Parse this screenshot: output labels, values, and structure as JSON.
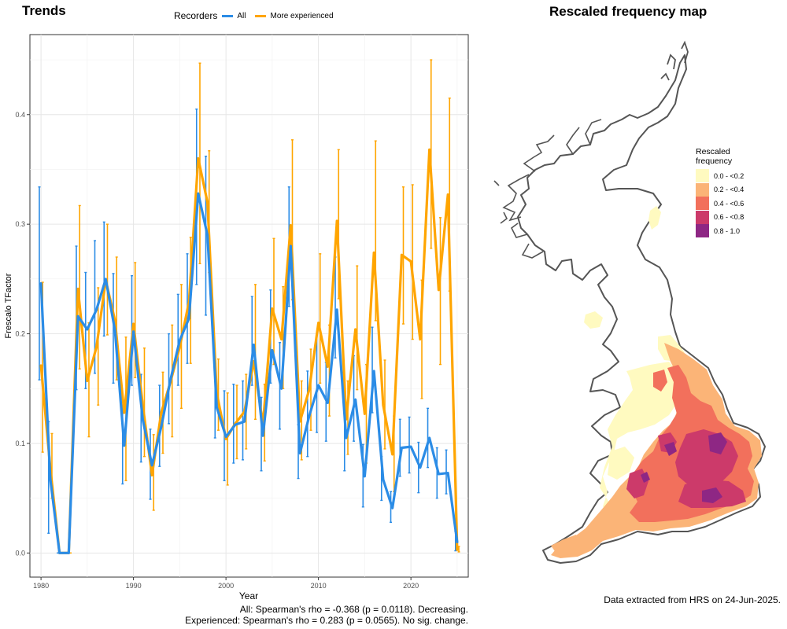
{
  "left_panel": {
    "title": "Trends",
    "legend": {
      "title": "Recorders",
      "items": [
        {
          "label": "All",
          "color": "#2B8CE6"
        },
        {
          "label": "More experienced",
          "color": "#FFA500"
        }
      ]
    },
    "stats": {
      "all": "All: Spearman's rho = -0.368 (p = 0.0118). Decreasing.",
      "experienced": "Experienced: Spearman's rho = 0.283 (p = 0.0565). No sig. change."
    }
  },
  "right_panel": {
    "title": "Rescaled frequency map",
    "legend_title_line1": "Rescaled",
    "legend_title_line2": "frequency",
    "legend_items": [
      {
        "label": "0.0 - <0.2",
        "color": "#FFFAC0"
      },
      {
        "label": "0.2 - <0.4",
        "color": "#FBB477"
      },
      {
        "label": "0.4 - <0.6",
        "color": "#F2705C"
      },
      {
        "label": "0.6 - <0.8",
        "color": "#CC3A6A"
      },
      {
        "label": "0.8 - 1.0",
        "color": "#8E2784"
      }
    ],
    "footnote": "Data extracted from HRS on 24-Jun-2025."
  },
  "chart_data": {
    "type": "line",
    "title": "Trends",
    "xlabel": "Year",
    "ylabel": "Frescalo TFactor",
    "xlim": [
      1978.8,
      2026.2
    ],
    "ylim": [
      -0.022,
      0.473
    ],
    "x_ticks": [
      1980,
      1990,
      2000,
      2010,
      2020
    ],
    "y_ticks": [
      0.0,
      0.1,
      0.2,
      0.3,
      0.4
    ],
    "y_tick_labels": [
      "0.0",
      "0.1",
      "0.2",
      "0.3",
      "0.4"
    ],
    "legend_position": "top",
    "grid": true,
    "series": [
      {
        "name": "All",
        "color": "#2B8CE6",
        "x": [
          1980,
          1981,
          1982,
          1983,
          1984,
          1985,
          1986,
          1987,
          1988,
          1989,
          1990,
          1991,
          1992,
          1993,
          1994,
          1995,
          1996,
          1997,
          1998,
          1999,
          2000,
          2001,
          2002,
          2003,
          2004,
          2005,
          2006,
          2007,
          2008,
          2009,
          2010,
          2011,
          2012,
          2013,
          2014,
          2015,
          2016,
          2017,
          2018,
          2019,
          2020,
          2021,
          2022,
          2023,
          2024,
          2025
        ],
        "y": [
          0.246,
          0.068,
          0.0,
          0.0,
          0.216,
          0.204,
          0.222,
          0.25,
          0.203,
          0.098,
          0.202,
          0.122,
          0.08,
          0.115,
          0.158,
          0.194,
          0.214,
          0.328,
          0.29,
          0.133,
          0.106,
          0.117,
          0.12,
          0.19,
          0.107,
          0.185,
          0.15,
          0.28,
          0.091,
          0.125,
          0.153,
          0.137,
          0.222,
          0.105,
          0.14,
          0.07,
          0.166,
          0.067,
          0.041,
          0.096,
          0.097,
          0.078,
          0.105,
          0.072,
          0.073,
          0.01
        ],
        "lower": [
          0.158,
          0.018,
          0.0,
          0.0,
          0.149,
          0.15,
          0.164,
          0.198,
          0.155,
          0.063,
          0.153,
          0.083,
          0.049,
          0.079,
          0.118,
          0.153,
          0.173,
          0.245,
          0.217,
          0.105,
          0.066,
          0.082,
          0.085,
          0.153,
          0.075,
          0.155,
          0.113,
          0.225,
          0.068,
          0.088,
          0.11,
          0.102,
          0.178,
          0.075,
          0.102,
          0.042,
          0.128,
          0.048,
          0.028,
          0.07,
          0.073,
          0.055,
          0.078,
          0.05,
          0.054,
          0.002
        ],
        "upper": [
          0.334,
          0.12,
          0.0,
          0.0,
          0.28,
          0.256,
          0.285,
          0.302,
          0.255,
          0.135,
          0.253,
          0.163,
          0.113,
          0.153,
          0.2,
          0.236,
          0.273,
          0.405,
          0.362,
          0.163,
          0.148,
          0.154,
          0.157,
          0.234,
          0.142,
          0.24,
          0.192,
          0.334,
          0.117,
          0.166,
          0.199,
          0.174,
          0.27,
          0.138,
          0.18,
          0.099,
          0.206,
          0.088,
          0.056,
          0.122,
          0.124,
          0.101,
          0.132,
          0.096,
          0.094,
          0.02
        ]
      },
      {
        "name": "More experienced",
        "color": "#FFA500",
        "x": [
          1980,
          1981,
          1982,
          1983,
          1984,
          1985,
          1986,
          1987,
          1988,
          1989,
          1990,
          1991,
          1992,
          1993,
          1994,
          1995,
          1996,
          1997,
          1998,
          1999,
          2000,
          2001,
          2002,
          2003,
          2004,
          2005,
          2006,
          2007,
          2008,
          2009,
          2010,
          2011,
          2012,
          2013,
          2014,
          2015,
          2016,
          2017,
          2018,
          2019,
          2020,
          2021,
          2022,
          2023,
          2024,
          2025
        ],
        "y": [
          0.171,
          0.078,
          0.0,
          0.0,
          0.241,
          0.157,
          0.188,
          0.249,
          0.212,
          0.128,
          0.209,
          0.135,
          0.071,
          0.128,
          0.156,
          0.188,
          0.229,
          0.36,
          0.32,
          0.146,
          0.104,
          0.118,
          0.129,
          0.175,
          0.117,
          0.223,
          0.195,
          0.299,
          0.12,
          0.149,
          0.21,
          0.17,
          0.303,
          0.122,
          0.204,
          0.127,
          0.274,
          0.135,
          0.09,
          0.272,
          0.266,
          0.195,
          0.368,
          0.24,
          0.327,
          0.003
        ],
        "lower": [
          0.092,
          0.05,
          0.0,
          0.0,
          0.168,
          0.106,
          0.135,
          0.199,
          0.158,
          0.066,
          0.16,
          0.088,
          0.039,
          0.091,
          0.106,
          0.132,
          0.173,
          0.264,
          0.256,
          0.112,
          0.062,
          0.086,
          0.095,
          0.122,
          0.084,
          0.172,
          0.15,
          0.231,
          0.085,
          0.112,
          0.155,
          0.125,
          0.232,
          0.09,
          0.149,
          0.082,
          0.212,
          0.095,
          0.056,
          0.209,
          0.195,
          0.141,
          0.278,
          0.172,
          0.239,
          0.001
        ],
        "upper": [
          0.247,
          0.109,
          0.0,
          0.0,
          0.317,
          0.21,
          0.242,
          0.3,
          0.27,
          0.197,
          0.265,
          0.187,
          0.108,
          0.165,
          0.208,
          0.245,
          0.288,
          0.447,
          0.367,
          0.177,
          0.146,
          0.153,
          0.163,
          0.245,
          0.154,
          0.287,
          0.243,
          0.377,
          0.157,
          0.186,
          0.273,
          0.208,
          0.368,
          0.157,
          0.262,
          0.172,
          0.376,
          0.176,
          0.125,
          0.334,
          0.336,
          0.249,
          0.45,
          0.306,
          0.415,
          0.006
        ]
      }
    ],
    "annotations": [
      "All: Spearman's rho = -0.368 (p = 0.0118). Decreasing.",
      "Experienced: Spearman's rho = 0.283 (p = 0.0565). No sig. change."
    ]
  }
}
